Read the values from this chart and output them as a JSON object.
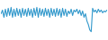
{
  "line_color": "#3399cc",
  "background_color": "#ffffff",
  "linewidth": 0.8,
  "values": [
    22,
    26,
    18,
    27,
    19,
    28,
    20,
    29,
    18,
    27,
    19,
    28,
    20,
    27,
    18,
    28,
    20,
    27,
    19,
    28,
    20,
    27,
    18,
    28,
    20,
    29,
    18,
    28,
    20,
    27,
    19,
    28,
    20,
    27,
    18,
    28,
    20,
    27,
    19,
    28,
    20,
    27,
    18,
    28,
    20,
    27,
    19,
    25,
    22,
    27,
    20,
    26,
    24,
    27,
    22,
    26,
    20,
    25,
    18,
    22,
    14,
    10,
    4,
    2,
    28,
    24,
    26,
    23,
    27,
    24,
    26,
    23,
    25,
    24,
    26
  ],
  "ylim_min": -5,
  "ylim_max": 35
}
